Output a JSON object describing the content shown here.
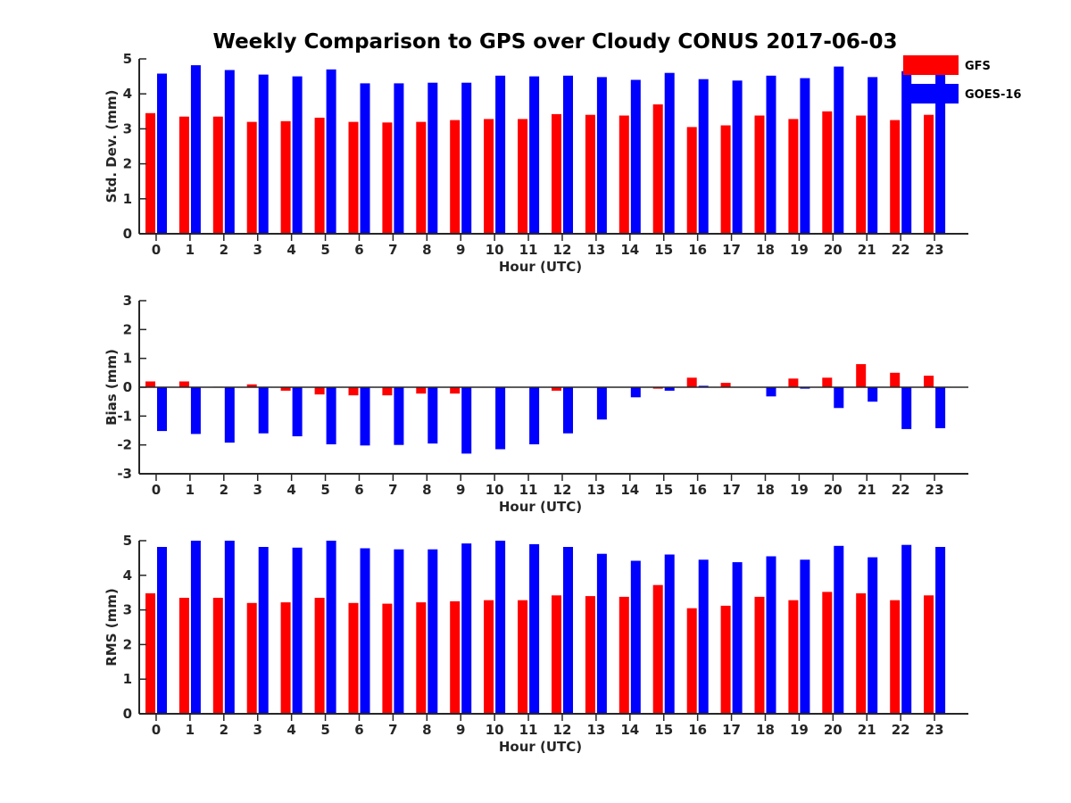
{
  "title": "Weekly Comparison to GPS over Cloudy CONUS 2017-06-03",
  "colors": {
    "GFS": "#ff0000",
    "GOES-16": "#0000ff",
    "axis": "#262626"
  },
  "legend": {
    "placement": "top-right",
    "entries": [
      "GFS",
      "GOES-16"
    ]
  },
  "chart_data": [
    {
      "type": "bar",
      "ylabel": "Std. Dev. (mm)",
      "xlabel": "Hour (UTC)",
      "ylim": [
        0,
        5
      ],
      "yticks": [
        0,
        1,
        2,
        3,
        4,
        5
      ],
      "categories": [
        0,
        1,
        2,
        3,
        4,
        5,
        6,
        7,
        8,
        9,
        10,
        11,
        12,
        13,
        14,
        15,
        16,
        17,
        18,
        19,
        20,
        21,
        22,
        23
      ],
      "series": [
        {
          "name": "GFS",
          "values": [
            3.45,
            3.35,
            3.35,
            3.2,
            3.22,
            3.32,
            3.2,
            3.18,
            3.2,
            3.25,
            3.28,
            3.28,
            3.42,
            3.4,
            3.38,
            3.7,
            3.05,
            3.1,
            3.38,
            3.28,
            3.5,
            3.38,
            3.25,
            3.4
          ]
        },
        {
          "name": "GOES-16",
          "values": [
            4.58,
            4.82,
            4.68,
            4.55,
            4.5,
            4.7,
            4.3,
            4.3,
            4.32,
            4.32,
            4.52,
            4.5,
            4.52,
            4.48,
            4.4,
            4.6,
            4.42,
            4.38,
            4.52,
            4.45,
            4.78,
            4.48,
            4.65,
            4.62
          ]
        }
      ]
    },
    {
      "type": "bar",
      "ylabel": "Bias (mm)",
      "xlabel": "Hour (UTC)",
      "ylim": [
        -3,
        3
      ],
      "yticks": [
        -3,
        -2,
        -1,
        0,
        1,
        2,
        3
      ],
      "categories": [
        0,
        1,
        2,
        3,
        4,
        5,
        6,
        7,
        8,
        9,
        10,
        11,
        12,
        13,
        14,
        15,
        16,
        17,
        18,
        19,
        20,
        21,
        22,
        23
      ],
      "series": [
        {
          "name": "GFS",
          "values": [
            0.2,
            0.2,
            0.02,
            0.1,
            -0.12,
            -0.25,
            -0.28,
            -0.28,
            -0.22,
            -0.22,
            0.0,
            0.0,
            -0.12,
            0.0,
            0.0,
            -0.05,
            0.33,
            0.15,
            0.0,
            0.3,
            0.33,
            0.8,
            0.5,
            0.4
          ]
        },
        {
          "name": "GOES-16",
          "values": [
            -1.52,
            -1.62,
            -1.92,
            -1.6,
            -1.7,
            -1.98,
            -2.02,
            -2.0,
            -1.95,
            -2.3,
            -2.15,
            -1.98,
            -1.6,
            -1.12,
            -0.35,
            -0.12,
            0.05,
            0.0,
            -0.32,
            -0.05,
            -0.72,
            -0.5,
            -1.45,
            -1.42
          ]
        }
      ]
    },
    {
      "type": "bar",
      "ylabel": "RMS (mm)",
      "xlabel": "Hour (UTC)",
      "ylim": [
        0,
        5
      ],
      "yticks": [
        0,
        1,
        2,
        3,
        4,
        5
      ],
      "categories": [
        0,
        1,
        2,
        3,
        4,
        5,
        6,
        7,
        8,
        9,
        10,
        11,
        12,
        13,
        14,
        15,
        16,
        17,
        18,
        19,
        20,
        21,
        22,
        23
      ],
      "series": [
        {
          "name": "GFS",
          "values": [
            3.48,
            3.35,
            3.35,
            3.2,
            3.22,
            3.35,
            3.2,
            3.18,
            3.22,
            3.25,
            3.28,
            3.28,
            3.42,
            3.4,
            3.38,
            3.72,
            3.05,
            3.12,
            3.38,
            3.28,
            3.52,
            3.48,
            3.28,
            3.42
          ]
        },
        {
          "name": "GOES-16",
          "values": [
            4.82,
            5.0,
            5.0,
            4.82,
            4.8,
            5.0,
            4.78,
            4.75,
            4.75,
            4.92,
            5.0,
            4.9,
            4.82,
            4.62,
            4.42,
            4.6,
            4.45,
            4.38,
            4.55,
            4.45,
            4.85,
            4.52,
            4.88,
            4.82
          ]
        }
      ]
    }
  ]
}
